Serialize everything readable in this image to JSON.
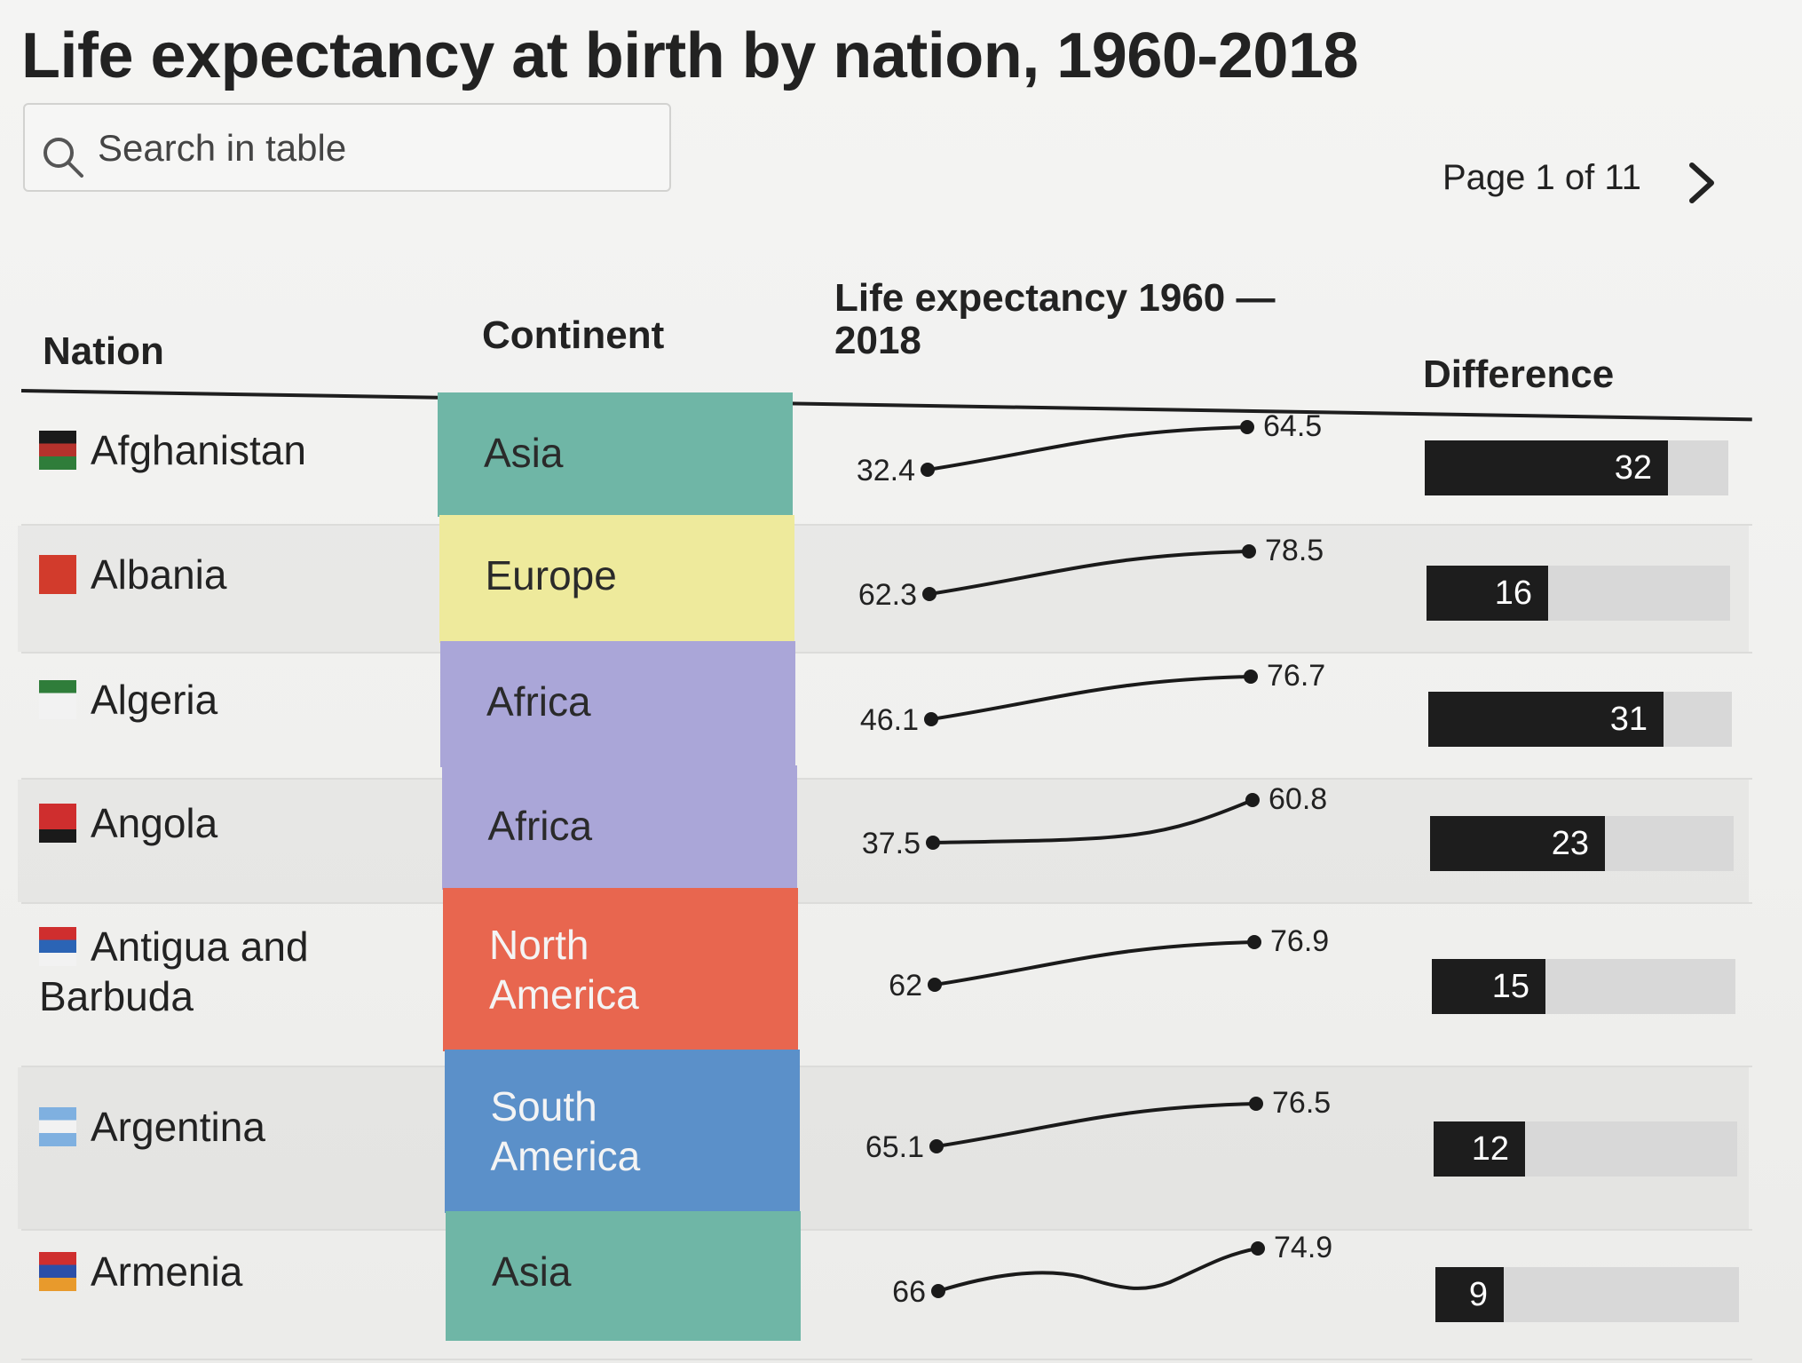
{
  "title": "Life expectancy at birth by nation, 1960-2018",
  "search": {
    "placeholder": "Search in table"
  },
  "pagination": {
    "label": "Page 1 of 11"
  },
  "icons": {
    "search": "search-icon",
    "next": "chevron-right-icon"
  },
  "headers": {
    "nation": "Nation",
    "continent": "Continent",
    "life_line1": "Life expectancy 1960 —",
    "life_line2": "2018",
    "difference": "Difference"
  },
  "continent_colors": {
    "Asia": "#6fb6a6",
    "Europe": "#eeea9c",
    "Africa": "#aaa6d8",
    "North America": "#e8664f",
    "South America": "#5b90c9"
  },
  "chart_data": {
    "type": "table",
    "title": "Life expectancy at birth by nation, 1960-2018",
    "columns": [
      "Nation",
      "Continent",
      "Life expectancy 1960 — 2018",
      "Difference"
    ],
    "difference_max": 40,
    "rows": [
      {
        "nation": "Afghanistan",
        "flag": [
          "#1a1a1a",
          "#b5322c",
          "#2f7d3a"
        ],
        "continent": "Asia",
        "continent_lines": [
          "Asia"
        ],
        "start": "32.4",
        "end": "64.5",
        "diff": 32,
        "diff_label": "32",
        "shape": "smooth"
      },
      {
        "nation": "Albania",
        "flag": [
          "#d23b2c",
          "#d23b2c",
          "#d23b2c"
        ],
        "continent": "Europe",
        "continent_lines": [
          "Europe"
        ],
        "start": "62.3",
        "end": "78.5",
        "diff": 16,
        "diff_label": "16",
        "shape": "smooth"
      },
      {
        "nation": "Algeria",
        "flag": [
          "#2f7d3a",
          "#f2f2f2",
          "#f2f2f2"
        ],
        "continent": "Africa",
        "continent_lines": [
          "Africa"
        ],
        "start": "46.1",
        "end": "76.7",
        "diff": 31,
        "diff_label": "31",
        "shape": "smooth"
      },
      {
        "nation": "Angola",
        "flag": [
          "#cf2e2e",
          "#cf2e2e",
          "#1a1a1a"
        ],
        "continent": "Africa",
        "continent_lines": [
          "Africa"
        ],
        "start": "37.5",
        "end": "60.8",
        "diff": 23,
        "diff_label": "23",
        "shape": "rise"
      },
      {
        "nation": "Antigua and Barbuda",
        "flag": [
          "#cf2e2e",
          "#2b64b5",
          "#f2f2f2"
        ],
        "continent": "North America",
        "continent_lines": [
          "North",
          "America"
        ],
        "start": "62",
        "end": "76.9",
        "diff": 15,
        "diff_label": "15",
        "shape": "smooth"
      },
      {
        "nation": "Argentina",
        "flag": [
          "#7fb0e0",
          "#f2f2f2",
          "#7fb0e0"
        ],
        "continent": "South America",
        "continent_lines": [
          "South",
          "America"
        ],
        "start": "65.1",
        "end": "76.5",
        "diff": 12,
        "diff_label": "12",
        "shape": "smooth"
      },
      {
        "nation": "Armenia",
        "flag": [
          "#cf2e2e",
          "#2b4fa8",
          "#e89a2c"
        ],
        "continent": "Asia",
        "continent_lines": [
          "Asia"
        ],
        "start": "66",
        "end": "74.9",
        "diff": 9,
        "diff_label": "9",
        "shape": "wave"
      }
    ]
  }
}
